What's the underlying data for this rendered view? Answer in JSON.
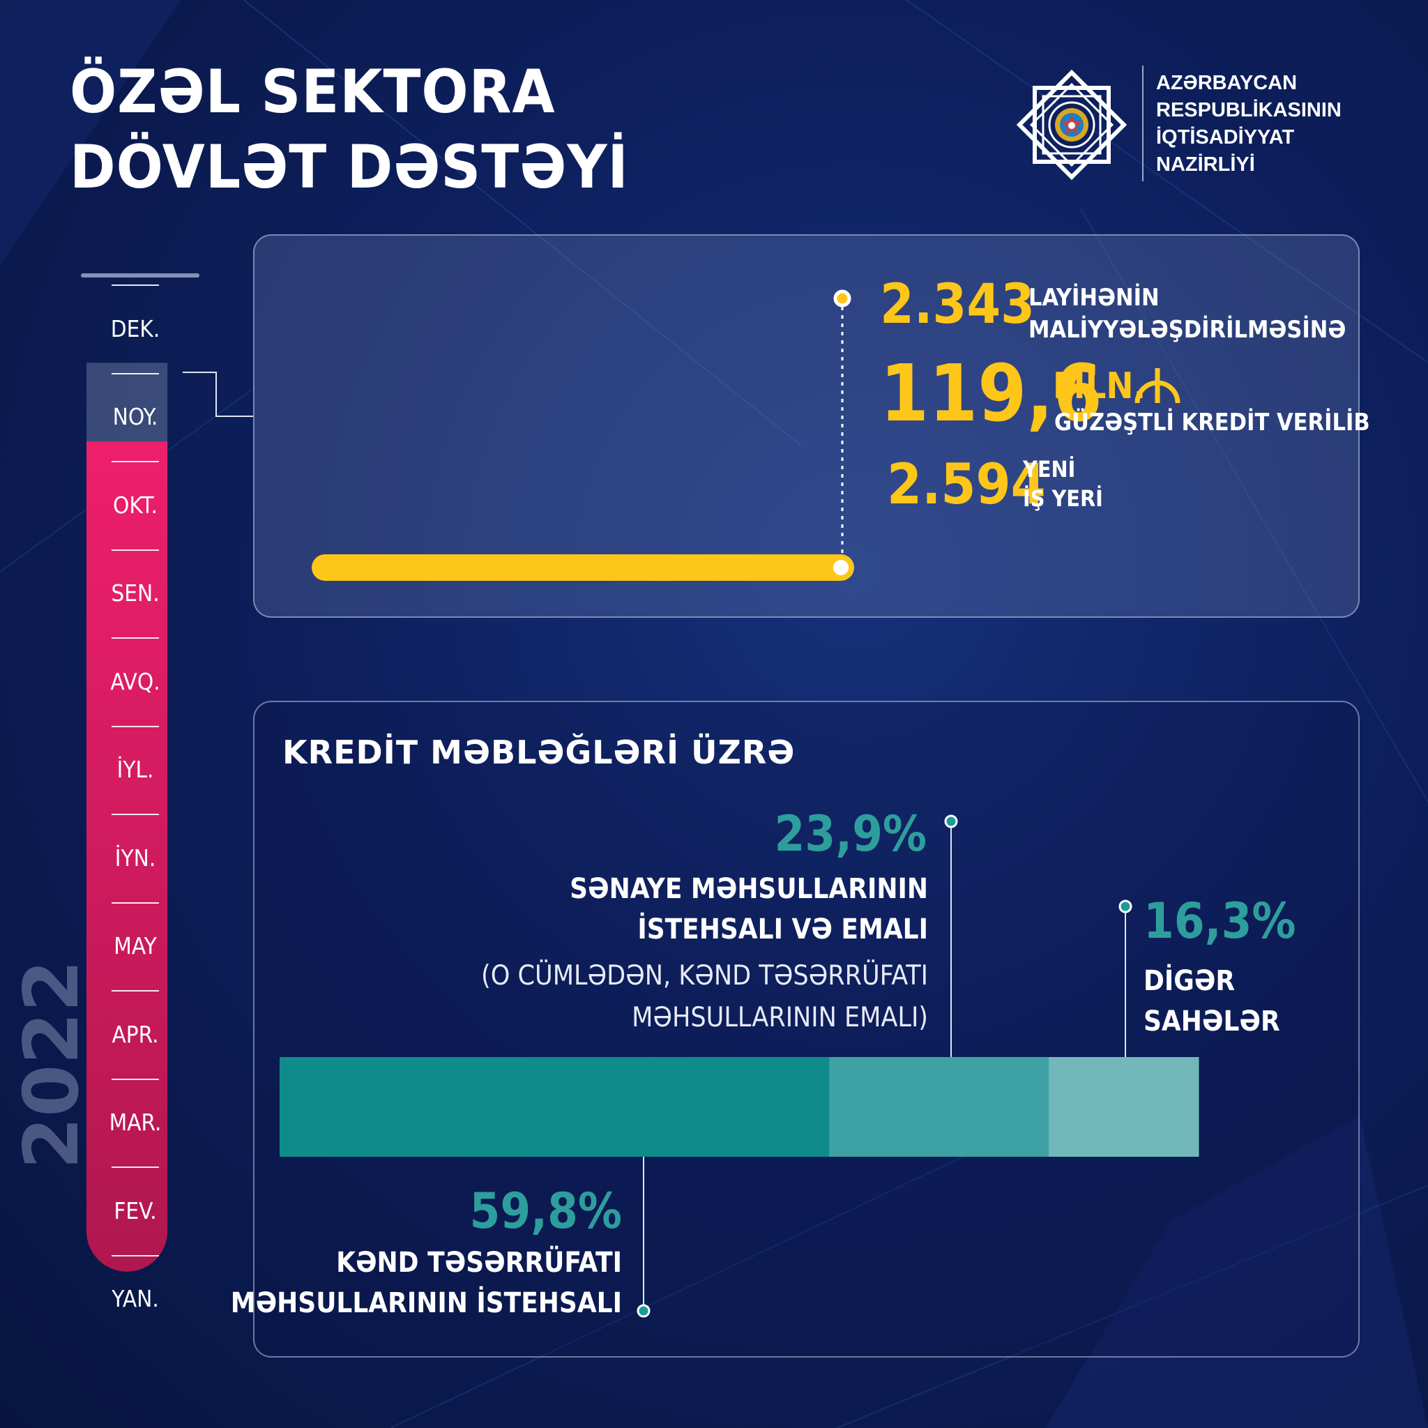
{
  "header": {
    "title_line1": "ÖZƏL SEKTORA",
    "title_line2": "DÖVLƏT DƏSTƏYİ"
  },
  "ministry": {
    "line1": "AZƏRBAYCAN",
    "line2": "RESPUBLİKASININ",
    "line3": "İQTİSADİYYAT",
    "line4": "NAZİRLİYİ"
  },
  "timeline": {
    "year": "2022",
    "months": [
      "DEK.",
      "NOY.",
      "OKT.",
      "SEN.",
      "AVQ.",
      "İYL.",
      "İYN.",
      "MAY",
      "APR.",
      "MAR.",
      "FEV.",
      "YAN."
    ],
    "active_fill_color": "#e51d6a",
    "empty_color": "#4a5a86"
  },
  "stats": {
    "projects_value": "2.343",
    "projects_label1": "LAYİHƏNİN",
    "projects_label2": "MALİYYƏLƏŞDİRİLMƏSİNƏ",
    "credit_value": "119,6",
    "credit_unit": "MLN.",
    "credit_label": "GÜZƏŞTLİ KREDİT VERİLİB",
    "jobs_value": "2.594",
    "jobs_label1": "YENİ",
    "jobs_label2": "İŞ YERİ",
    "accent_color": "#ffc61a"
  },
  "chart_data": {
    "type": "bar",
    "title": "KREDİT MƏBLƏĞLƏRİ ÜZRƏ",
    "orientation": "horizontal-stacked",
    "segments": [
      {
        "value": 59.8,
        "pct_label": "59,8%",
        "label1": "KƏND TƏSƏRRÜFATI",
        "label2": "MƏHSULLARININ İSTEHSALI",
        "color": "#0f8b8b"
      },
      {
        "value": 23.9,
        "pct_label": "23,9%",
        "label1": "SƏNAYE MƏHSULLARININ",
        "label2": "İSTEHSALI VƏ EMALI",
        "note1": "(O CÜMLƏDƏN, KƏND TƏSƏRRÜFATI",
        "note2": "MƏHSULLARININ EMALI)",
        "color": "#3ea1a3"
      },
      {
        "value": 16.3,
        "pct_label": "16,3%",
        "label1": "DİGƏR",
        "label2": "SAHƏLƏR",
        "color": "#72b8bb"
      }
    ]
  }
}
